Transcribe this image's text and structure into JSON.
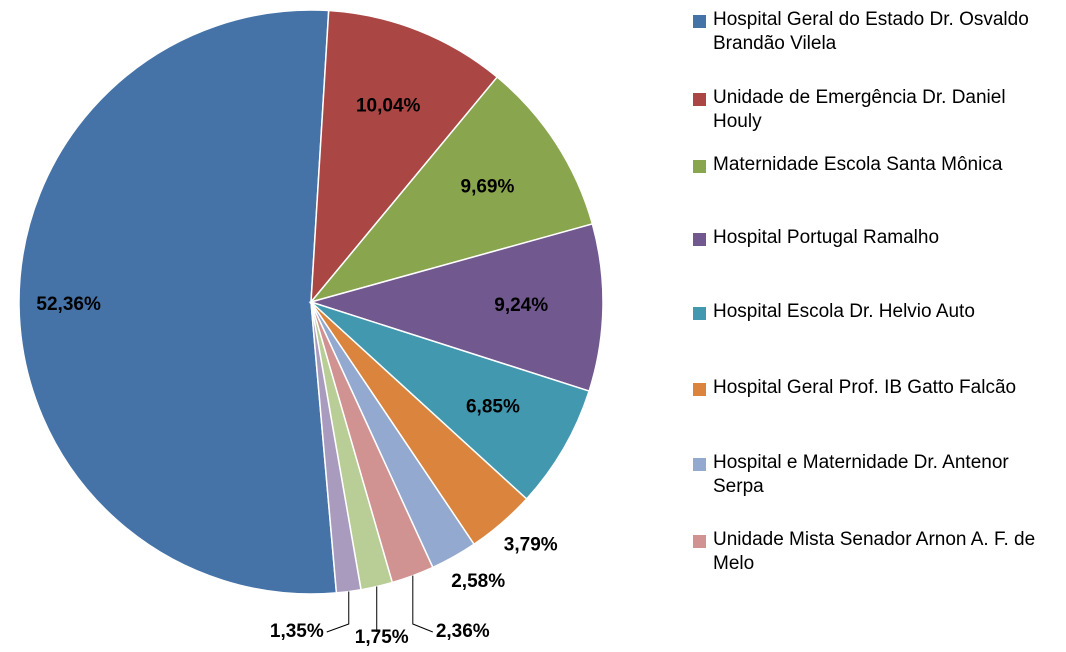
{
  "chart_data": {
    "type": "pie",
    "categories": [
      "Hospital Geral do Estado Dr. Osvaldo Brandão Vilela",
      "Unidade de Emergência Dr. Daniel Houly",
      "Maternidade Escola Santa Mônica",
      "Hospital Portugal Ramalho",
      "Hospital Escola Dr. Helvio Auto",
      "Hospital Geral Prof. IB Gatto Falcão",
      "Hospital e Maternidade Dr. Antenor Serpa",
      "Unidade Mista Senador Arnon A. F. de Melo",
      null,
      null
    ],
    "values": [
      52.36,
      10.04,
      9.69,
      9.24,
      6.85,
      3.79,
      2.58,
      2.36,
      1.75,
      1.35
    ],
    "value_labels": [
      "52,36%",
      "10,04%",
      "9,69%",
      "9,24%",
      "6,85%",
      "3,79%",
      "2,58%",
      "2,36%",
      "1,75%",
      "1,35%"
    ],
    "colors": [
      "#4572a7",
      "#aa4643",
      "#89a54e",
      "#71588f",
      "#4198af",
      "#db843d",
      "#93a9cf",
      "#d19392",
      "#b9cd96",
      "#a99bbd"
    ],
    "legend": "right"
  }
}
